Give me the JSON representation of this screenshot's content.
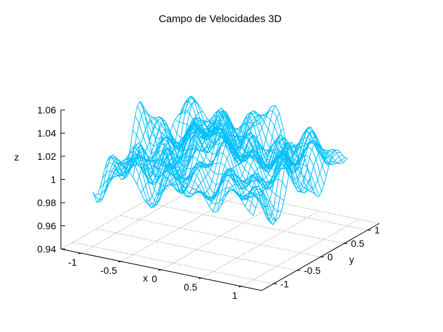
{
  "chart_data": {
    "type": "surface3d",
    "title": "Campo de Velocidades 3D",
    "xlabel": "x",
    "ylabel": "y",
    "zlabel": "z",
    "x_ticks": [
      "-1",
      "-0.5",
      "0",
      "0.5",
      "1"
    ],
    "y_ticks": [
      "-1",
      "-0.5",
      "0",
      "0.5",
      "1"
    ],
    "z_ticks": [
      "1.06",
      "1.04",
      "1.02",
      "1",
      "0.98",
      "0.96",
      "0.94"
    ],
    "xlim": [
      -1.25,
      1.25
    ],
    "ylim": [
      -1.25,
      1.25
    ],
    "zlim": [
      0.94,
      1.06
    ],
    "grid": true,
    "view": "perspective surface, isolines drawn along x",
    "surface": {
      "z_mean": 1.0,
      "z_min": 0.96,
      "z_max": 1.06
    },
    "colors": {
      "surface": "#00bfff",
      "axes": "#000000",
      "grid": "#a0a0a0"
    }
  }
}
